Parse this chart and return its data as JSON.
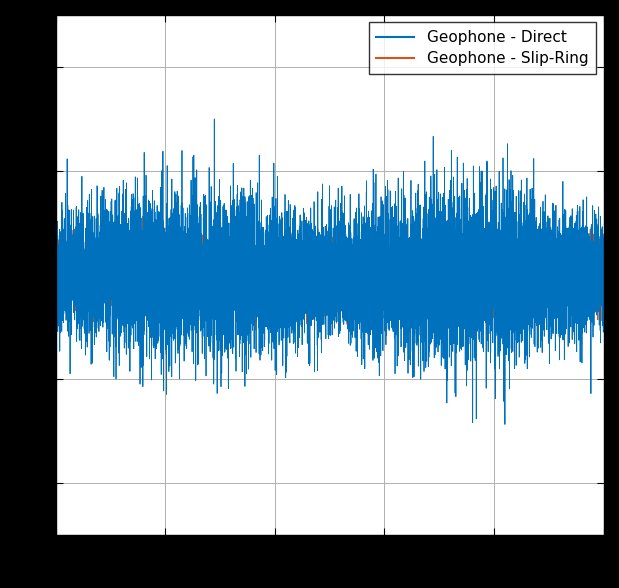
{
  "title": "",
  "xlabel": "",
  "ylabel": "",
  "legend_entries": [
    "Geophone - Direct",
    "Geophone - Slip-Ring"
  ],
  "color_direct": "#0072BD",
  "color_slipring": "#D95319",
  "n_points": 10000,
  "seed_direct": 42,
  "seed_slipring": 7,
  "ylim": [
    -5,
    5
  ],
  "xlim": [
    0,
    10000
  ],
  "grid": true,
  "legend_loc": "upper right",
  "figsize": [
    6.19,
    5.88
  ],
  "dpi": 100,
  "background_color": "#ffffff",
  "linewidth": 0.6,
  "direct_scale": 0.55,
  "slipring_scale": 0.3
}
